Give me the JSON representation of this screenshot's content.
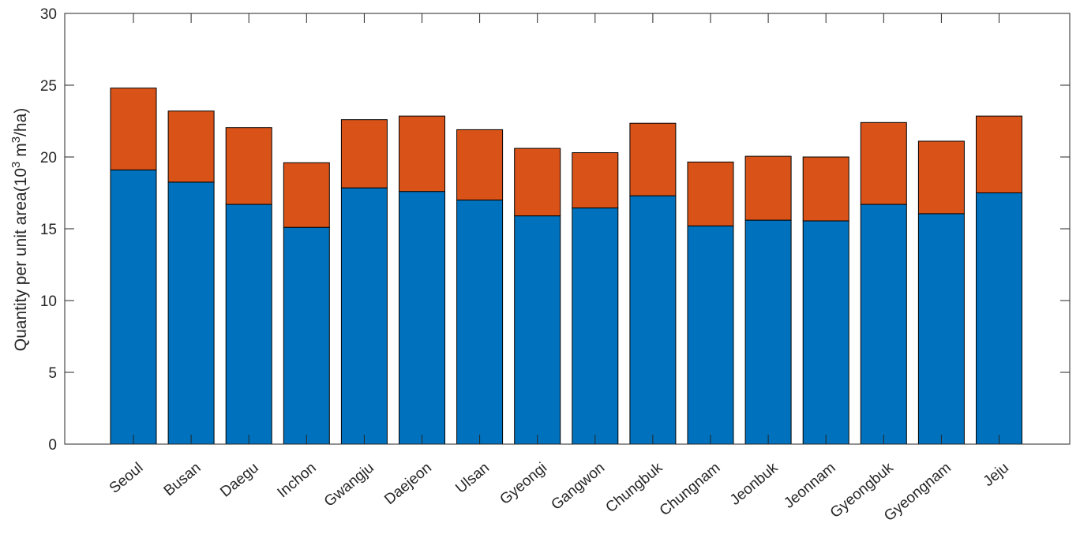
{
  "chart_data": {
    "type": "bar",
    "stacked": true,
    "categories": [
      "Seoul",
      "Busan",
      "Daegu",
      "Inchon",
      "Gwangju",
      "Daejeon",
      "Ulsan",
      "Gyeongi",
      "Gangwon",
      "Chungbuk",
      "Chungnam",
      "Jeonbuk",
      "Jeonnam",
      "Gyeongbuk",
      "Gyeongnam",
      "Jeju"
    ],
    "series": [
      {
        "color": "#0072BD",
        "values": [
          19.1,
          18.25,
          16.7,
          15.1,
          17.85,
          17.6,
          17.0,
          15.9,
          16.45,
          17.3,
          15.2,
          15.6,
          15.55,
          16.7,
          16.05,
          17.5
        ]
      },
      {
        "color": "#D95319",
        "values": [
          5.7,
          4.95,
          5.35,
          4.5,
          4.75,
          5.25,
          4.9,
          4.7,
          3.85,
          5.05,
          4.45,
          4.45,
          4.45,
          5.7,
          5.05,
          5.35
        ]
      }
    ],
    "ylabel_prefix": "Quantity per unit area(10",
    "ylabel_exp1": "3",
    "ylabel_mid": " m",
    "ylabel_exp2": "3",
    "ylabel_suffix": "/ha)",
    "xlabel": "",
    "title": "",
    "ylim": [
      0,
      30
    ],
    "yticks": [
      0,
      5,
      10,
      15,
      20,
      25,
      30
    ],
    "grid": false,
    "box": true
  }
}
